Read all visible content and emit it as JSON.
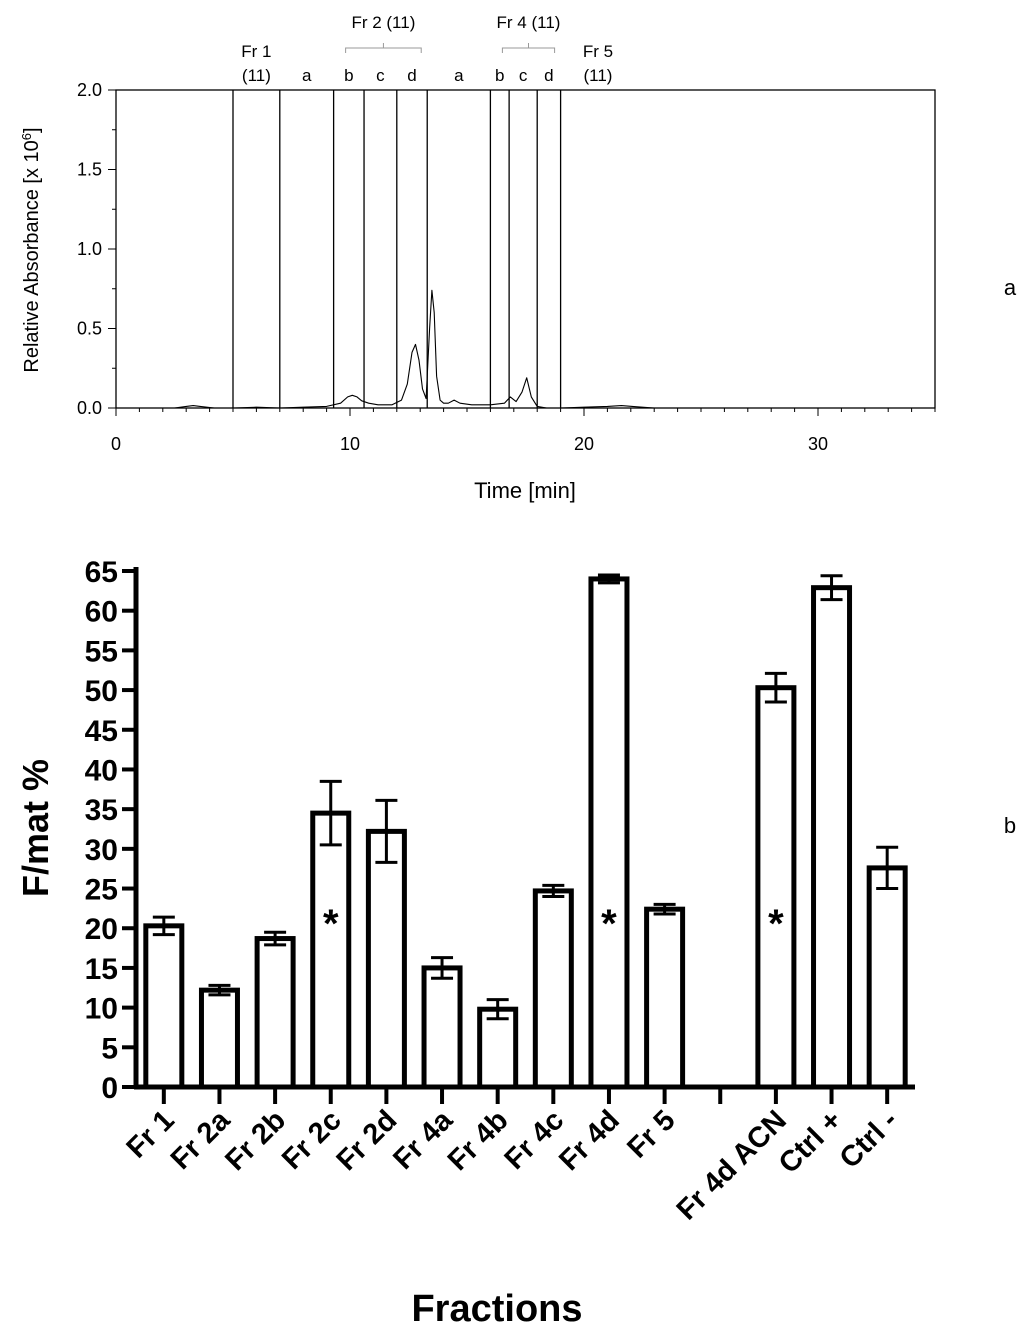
{
  "chart_data": [
    {
      "panel_label": "a",
      "type": "line",
      "xlabel": "Time [min]",
      "ylabel": "Relative Absorbance [x 10",
      "ylabel_exponent": "6",
      "ylabel_close": "]",
      "xlim": [
        0,
        35
      ],
      "ylim": [
        0,
        2.0
      ],
      "x_ticks": [
        0,
        10,
        20,
        30
      ],
      "y_ticks": [
        "0.0",
        "0.5",
        "1.0",
        "1.5",
        "2.0"
      ],
      "fraction_boundaries": [
        5.0,
        7.0,
        9.3,
        10.6,
        12.0,
        13.3,
        16.0,
        16.8,
        18.0,
        19.0
      ],
      "fraction_groups": [
        {
          "label": "Fr 1",
          "sub": "(11)"
        },
        {
          "label": "Fr 2 (11)",
          "subs": [
            "a",
            "b",
            "c",
            "d"
          ]
        },
        {
          "label": "Fr 4 (11)",
          "subs": [
            "a",
            "b",
            "c",
            "d"
          ]
        },
        {
          "label": "Fr 5",
          "sub": "(11)"
        }
      ],
      "series": [
        {
          "x": [
            0,
            2.5,
            3.0,
            3.3,
            3.6,
            4.2,
            5,
            6,
            7,
            8,
            9,
            9.6,
            9.9,
            10.1,
            10.3,
            10.5,
            10.8,
            11.2,
            11.8,
            12.2,
            12.45,
            12.65,
            12.8,
            12.95,
            13.1,
            13.25,
            13.4,
            13.5,
            13.6,
            13.7,
            13.85,
            14.0,
            14.2,
            14.45,
            14.7,
            15.2,
            16.0,
            16.6,
            16.85,
            17.1,
            17.35,
            17.55,
            17.75,
            18.0,
            18.4,
            19.0,
            20,
            21,
            21.6,
            22.2,
            23,
            25,
            28,
            31,
            35
          ],
          "y": [
            0.0,
            0.0,
            0.01,
            0.015,
            0.01,
            0.0,
            0.0,
            0.005,
            0.0,
            0.005,
            0.01,
            0.03,
            0.07,
            0.08,
            0.07,
            0.045,
            0.03,
            0.02,
            0.02,
            0.05,
            0.15,
            0.35,
            0.4,
            0.3,
            0.12,
            0.06,
            0.5,
            0.74,
            0.6,
            0.2,
            0.05,
            0.03,
            0.03,
            0.05,
            0.03,
            0.02,
            0.02,
            0.03,
            0.07,
            0.04,
            0.1,
            0.19,
            0.07,
            0.01,
            0.0,
            0.0,
            0.005,
            0.01,
            0.015,
            0.008,
            0.0,
            0.0,
            0.0,
            0.0,
            0.0
          ]
        }
      ]
    },
    {
      "panel_label": "b",
      "type": "bar",
      "xlabel": "Fractions",
      "ylabel": "F/mat  %",
      "ylim": [
        0,
        65
      ],
      "y_ticks": [
        "0",
        "5",
        "10",
        "15",
        "20",
        "25",
        "30",
        "35",
        "40",
        "45",
        "50",
        "55",
        "60",
        "65"
      ],
      "categories": [
        "Fr 1",
        "Fr 2a",
        "Fr 2b",
        "Fr 2c",
        "Fr 2d",
        "Fr 4a",
        "Fr 4b",
        "Fr 4c",
        "Fr 4d",
        "Fr 5",
        "",
        "Fr 4d ACN",
        "Ctrl +",
        "Ctrl -"
      ],
      "values": [
        20.3,
        12.2,
        18.7,
        34.5,
        32.2,
        15.0,
        9.8,
        24.7,
        64.0,
        22.4,
        null,
        50.3,
        62.9,
        27.6
      ],
      "errors": [
        1.1,
        0.6,
        0.8,
        4.0,
        3.9,
        1.3,
        1.2,
        0.7,
        0.5,
        0.6,
        null,
        1.8,
        1.5,
        2.6
      ],
      "significance_marker": "*",
      "significant": [
        "Fr 2c",
        "Fr 4d",
        "Fr 4d ACN"
      ]
    }
  ]
}
